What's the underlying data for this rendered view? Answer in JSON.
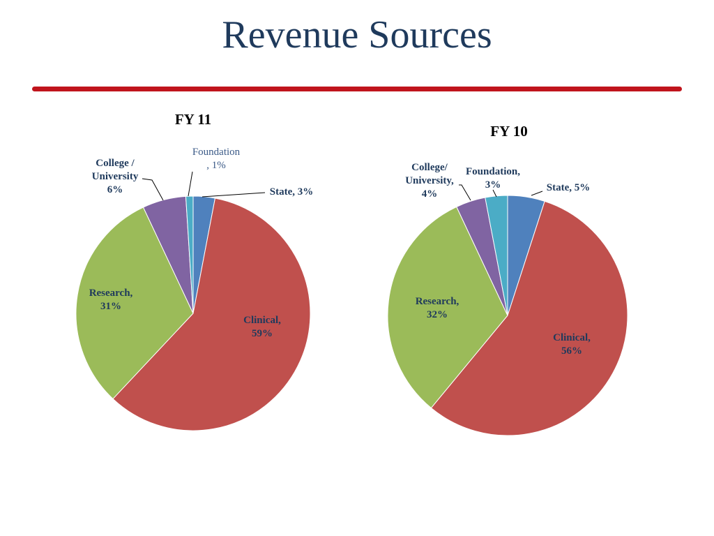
{
  "page": {
    "title": "Revenue Sources",
    "accent_color": "#C0141C",
    "title_color": "#1F3A5C"
  },
  "chart_data": [
    {
      "type": "pie",
      "title": "FY 11",
      "slices": [
        {
          "name": "State",
          "value": 3,
          "color": "#4F81BD",
          "label": [
            "State, 3%"
          ]
        },
        {
          "name": "Clinical",
          "value": 59,
          "color": "#C0504D",
          "label": [
            "Clinical,",
            "59%"
          ]
        },
        {
          "name": "Research",
          "value": 31,
          "color": "#9BBB59",
          "label": [
            "Research,",
            "31%"
          ]
        },
        {
          "name": "College / University",
          "value": 6,
          "color": "#8064A2",
          "label": [
            "College /",
            "University",
            "6%"
          ]
        },
        {
          "name": "Foundation",
          "value": 1,
          "color": "#4BACC6",
          "label": [
            "Foundation",
            ", 1%"
          ]
        }
      ]
    },
    {
      "type": "pie",
      "title": "FY 10",
      "slices": [
        {
          "name": "State",
          "value": 5,
          "color": "#4F81BD",
          "label": [
            "State, 5%"
          ]
        },
        {
          "name": "Clinical",
          "value": 56,
          "color": "#C0504D",
          "label": [
            "Clinical,",
            "56%"
          ]
        },
        {
          "name": "Research",
          "value": 32,
          "color": "#9BBB59",
          "label": [
            "Research,",
            "32%"
          ]
        },
        {
          "name": "College/ University",
          "value": 4,
          "color": "#8064A2",
          "label": [
            "College/",
            "University,",
            "4%"
          ]
        },
        {
          "name": "Foundation",
          "value": 3,
          "color": "#4BACC6",
          "label": [
            "Foundation,",
            "3%"
          ]
        }
      ]
    }
  ]
}
